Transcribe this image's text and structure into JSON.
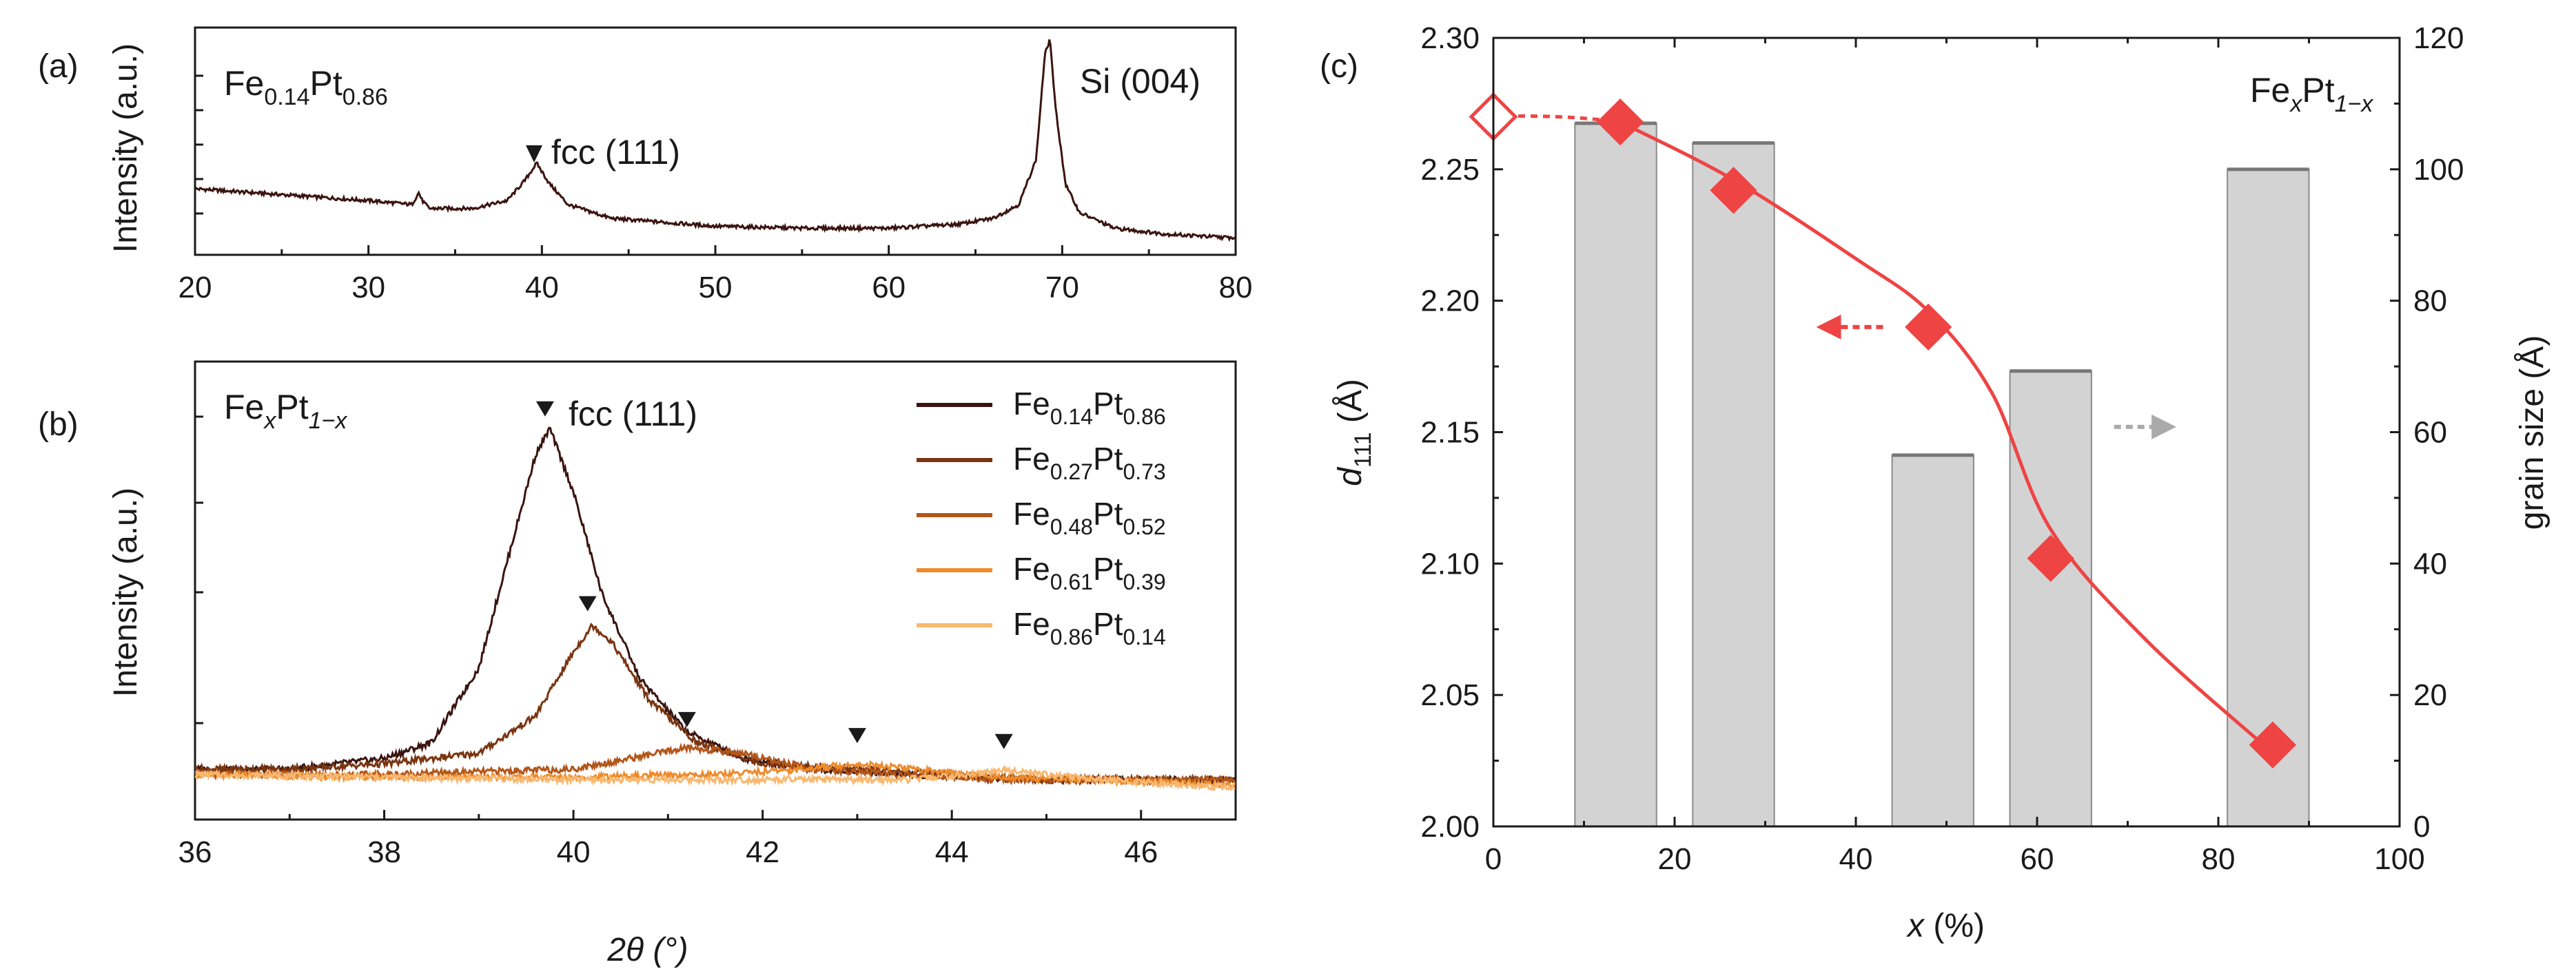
{
  "panel_labels": {
    "a": "(a)",
    "b": "(b)",
    "c": "(c)"
  },
  "chart_data": [
    {
      "panel": "a",
      "type": "line",
      "title": "",
      "xlabel": "2θ (°)",
      "ylabel": "Intensity (a.u.)",
      "xlim": [
        20,
        80
      ],
      "xticks": [
        "20",
        "30",
        "40",
        "50",
        "60",
        "70",
        "80"
      ],
      "sample": {
        "main": "Fe",
        "sub1": "0.14",
        "mid": "Pt",
        "sub2": "0.86"
      },
      "annotations": {
        "fcc": "fcc (111)",
        "si": "Si (004)"
      },
      "color": "#3a1410",
      "series": [
        {
          "name": "Fe0.14Pt0.86",
          "x": [
            20,
            25,
            30,
            32.5,
            32.9,
            33.1,
            33.5,
            36,
            38,
            39,
            39.7,
            40.4,
            41.5,
            44,
            50,
            55,
            60,
            64,
            66,
            67.5,
            68.5,
            69.0,
            69.3,
            69.6,
            70.2,
            71,
            73,
            76,
            80
          ],
          "y": [
            0.3,
            0.27,
            0.24,
            0.22,
            0.28,
            0.24,
            0.2,
            0.2,
            0.24,
            0.34,
            0.43,
            0.33,
            0.22,
            0.15,
            0.11,
            0.1,
            0.1,
            0.12,
            0.15,
            0.22,
            0.45,
            0.98,
            1.06,
            0.72,
            0.32,
            0.18,
            0.1,
            0.07,
            0.05
          ]
        }
      ]
    },
    {
      "panel": "b",
      "type": "line",
      "title": "",
      "xlabel": "2θ (°)",
      "ylabel": "Intensity (a.u.)",
      "xlim": [
        36,
        47
      ],
      "xticks": [
        "36",
        "38",
        "40",
        "42",
        "44",
        "46"
      ],
      "sample": {
        "main": "Fe",
        "sub1": "x",
        "mid": "Pt",
        "sub2": "1−x"
      },
      "annotations": {
        "fcc": "fcc (111)"
      },
      "series": [
        {
          "name": "Fe0.14Pt0.86",
          "sub1": "0.14",
          "sub2": "0.86",
          "color": "#3a1410",
          "peak": 39.7,
          "x": [
            36,
            37,
            38,
            38.5,
            39,
            39.3,
            39.6,
            39.75,
            40.0,
            40.3,
            40.7,
            41.2,
            41.8,
            42.5,
            43.5,
            45
          ],
          "y": [
            0.03,
            0.03,
            0.05,
            0.08,
            0.22,
            0.42,
            0.62,
            0.67,
            0.55,
            0.36,
            0.2,
            0.1,
            0.05,
            0.03,
            0.02,
            0.01
          ]
        },
        {
          "name": "Fe0.27Pt0.73",
          "sub1": "0.27",
          "sub2": "0.73",
          "color": "#7a3510",
          "peak": 40.15,
          "x": [
            36,
            37,
            38,
            39,
            39.6,
            40.0,
            40.2,
            40.4,
            40.8,
            41.3,
            42,
            43,
            44,
            45
          ],
          "y": [
            0.03,
            0.03,
            0.04,
            0.06,
            0.13,
            0.25,
            0.3,
            0.27,
            0.16,
            0.08,
            0.04,
            0.03,
            0.02,
            0.01
          ]
        },
        {
          "name": "Fe0.48Pt0.52",
          "sub1": "0.48",
          "sub2": "0.52",
          "color": "#b3561a",
          "peak": 41.2,
          "x": [
            36,
            38,
            40,
            40.6,
            41.2,
            41.8,
            42.5,
            43.5,
            44.5,
            45
          ],
          "y": [
            0.02,
            0.02,
            0.03,
            0.05,
            0.07,
            0.06,
            0.03,
            0.02,
            0.01,
            0.01
          ]
        },
        {
          "name": "Fe0.61Pt0.39",
          "sub1": "0.61",
          "sub2": "0.39",
          "color": "#ee8a2a",
          "peak": 43.0,
          "x": [
            36,
            38,
            40,
            41.5,
            42.4,
            43.0,
            43.6,
            44.5,
            45.5,
            47
          ],
          "y": [
            0.02,
            0.015,
            0.015,
            0.02,
            0.03,
            0.04,
            0.03,
            0.015,
            0.01,
            0.0
          ]
        },
        {
          "name": "Fe0.86Pt0.14",
          "sub1": "0.86",
          "sub2": "0.14",
          "color": "#f8b870",
          "peak": 44.55,
          "x": [
            36,
            38,
            40,
            42,
            43.5,
            44.2,
            44.6,
            45.0,
            45.6,
            46.5,
            47
          ],
          "y": [
            0.02,
            0.015,
            0.01,
            0.01,
            0.01,
            0.02,
            0.03,
            0.02,
            0.01,
            0.0,
            -0.005
          ]
        }
      ]
    },
    {
      "panel": "c",
      "type": "bar+scatter",
      "title": "",
      "xlabel": "x (%)",
      "ylabel_left": "d111 (Å)",
      "ylabel_right": "grain size (Å)",
      "xlim": [
        0,
        100
      ],
      "ylim_left": [
        2.0,
        2.3
      ],
      "ylim_right": [
        0,
        120
      ],
      "xticks": [
        "0",
        "20",
        "40",
        "60",
        "80",
        "100"
      ],
      "yticks_left": [
        "2.00",
        "2.05",
        "2.10",
        "2.15",
        "2.20",
        "2.25",
        "2.30"
      ],
      "yticks_right": [
        "0",
        "20",
        "40",
        "60",
        "80",
        "100",
        "120"
      ],
      "sample": {
        "main": "Fe",
        "sub1": "x",
        "mid": "Pt",
        "sub2": "1−x"
      },
      "bars": {
        "name": "grain size",
        "color": "#d3d3d3",
        "x_ranges": [
          [
            9,
            18
          ],
          [
            22,
            31
          ],
          [
            44,
            53
          ],
          [
            57,
            66
          ],
          [
            81,
            90
          ]
        ],
        "values": [
          107,
          104,
          56.5,
          69.3,
          100
        ]
      },
      "d111": {
        "name": "d111",
        "color": "#ee4444",
        "x": [
          0,
          14,
          26.5,
          48,
          61.5,
          86
        ],
        "y": [
          2.27,
          2.268,
          2.242,
          2.19,
          2.102,
          2.031
        ],
        "open_marker_index": 0
      },
      "fit": {
        "x": [
          14,
          26.5,
          40,
          48,
          55,
          61.5,
          72,
          86
        ],
        "y": [
          2.268,
          2.246,
          2.216,
          2.196,
          2.165,
          2.113,
          2.071,
          2.028
        ]
      },
      "arrows": [
        {
          "color": "#ee4444",
          "direction": "left",
          "x": [
            37,
            43
          ],
          "y": 2.19
        },
        {
          "color": "#aaaaaa",
          "direction": "right",
          "x": [
            68.5,
            74
          ],
          "y": 2.152
        }
      ]
    }
  ]
}
